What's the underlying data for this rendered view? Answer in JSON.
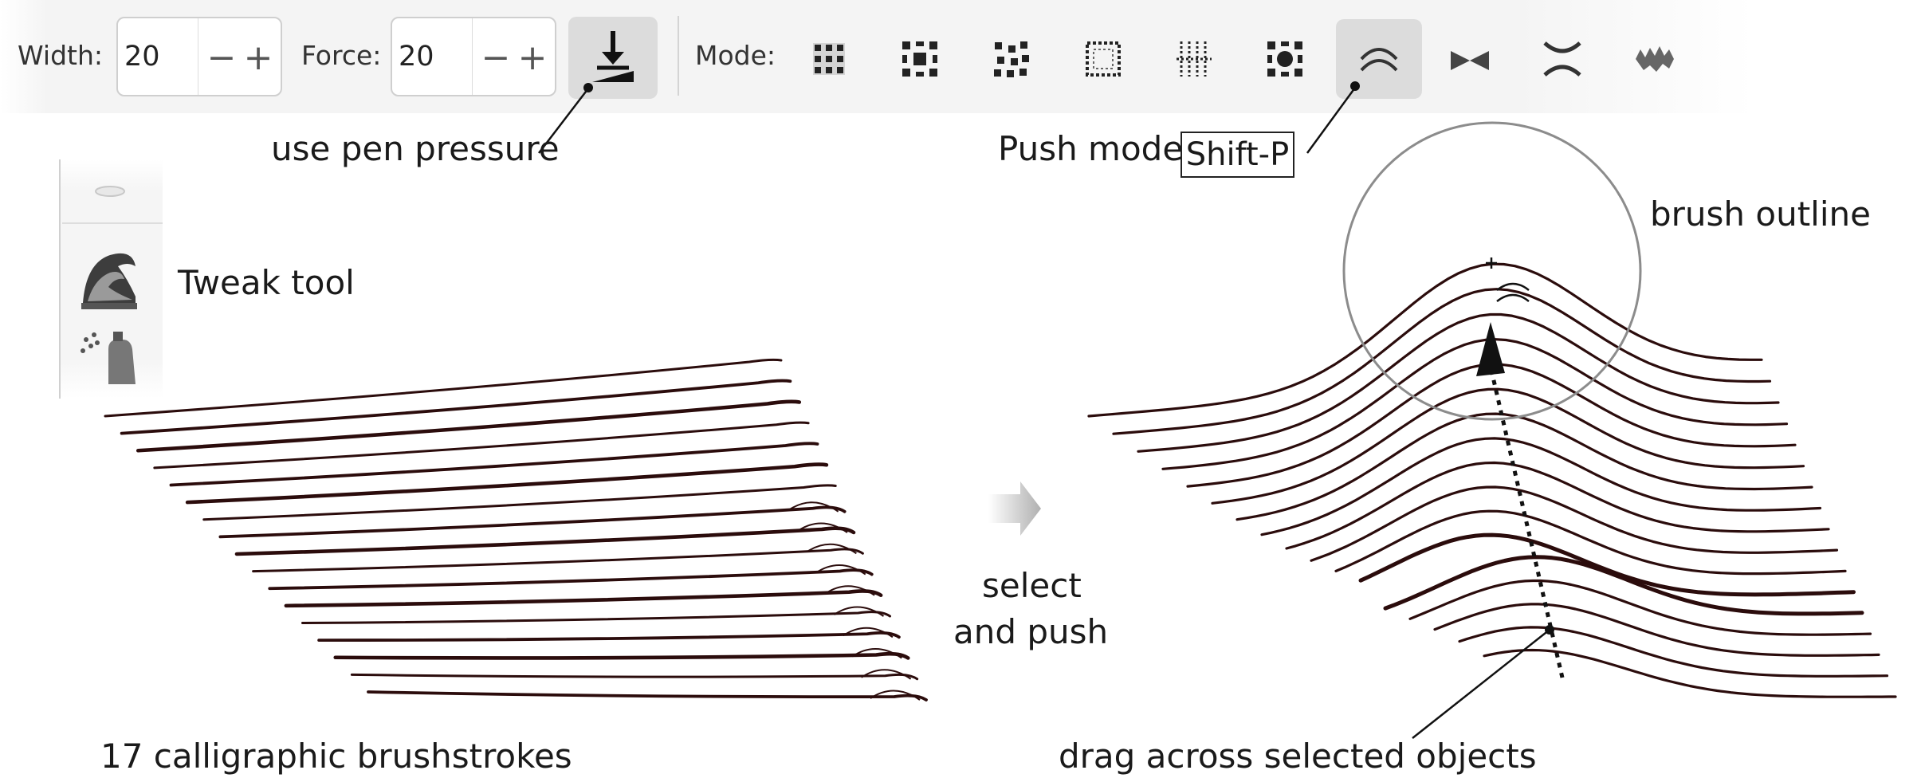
{
  "toolbar": {
    "width_label": "Width:",
    "width_value": "20",
    "force_label": "Force:",
    "force_value": "20",
    "minus": "−",
    "plus": "+",
    "mode_label": "Mode:",
    "active_mode": "push"
  },
  "annotations": {
    "pen_pressure": "use pen pressure",
    "push_mode": "Push mode",
    "shortcut": "Shift-P",
    "brush_outline": "brush outline",
    "tweak_tool": "Tweak tool",
    "select_push_line1": "select",
    "select_push_line2": "and push",
    "strokes_caption": "17 calligraphic brushstrokes",
    "drag_caption": "drag across selected objects"
  },
  "icons": {
    "pressure": "pen-pressure-icon",
    "modes": [
      "move-icon",
      "move-inout-icon",
      "move-jitter-icon",
      "scale-icon",
      "rotate-icon",
      "duplicate-icon",
      "push-icon",
      "shrink-grow-icon",
      "attract-repel-icon",
      "roughen-icon"
    ],
    "toolbox": [
      "calligraphy-icon",
      "tweak-icon",
      "spray-icon"
    ],
    "arrow": "right-arrow-icon",
    "cursor": "tweak-push-cursor-icon"
  },
  "colors": {
    "stroke": "#2b0c0c",
    "toolbar": "#f4f4f4",
    "active_button": "#dcdcdc",
    "brush_circle": "#8c8c8c"
  },
  "strokes": {
    "count": 17,
    "push_peak_x": 1870
  }
}
